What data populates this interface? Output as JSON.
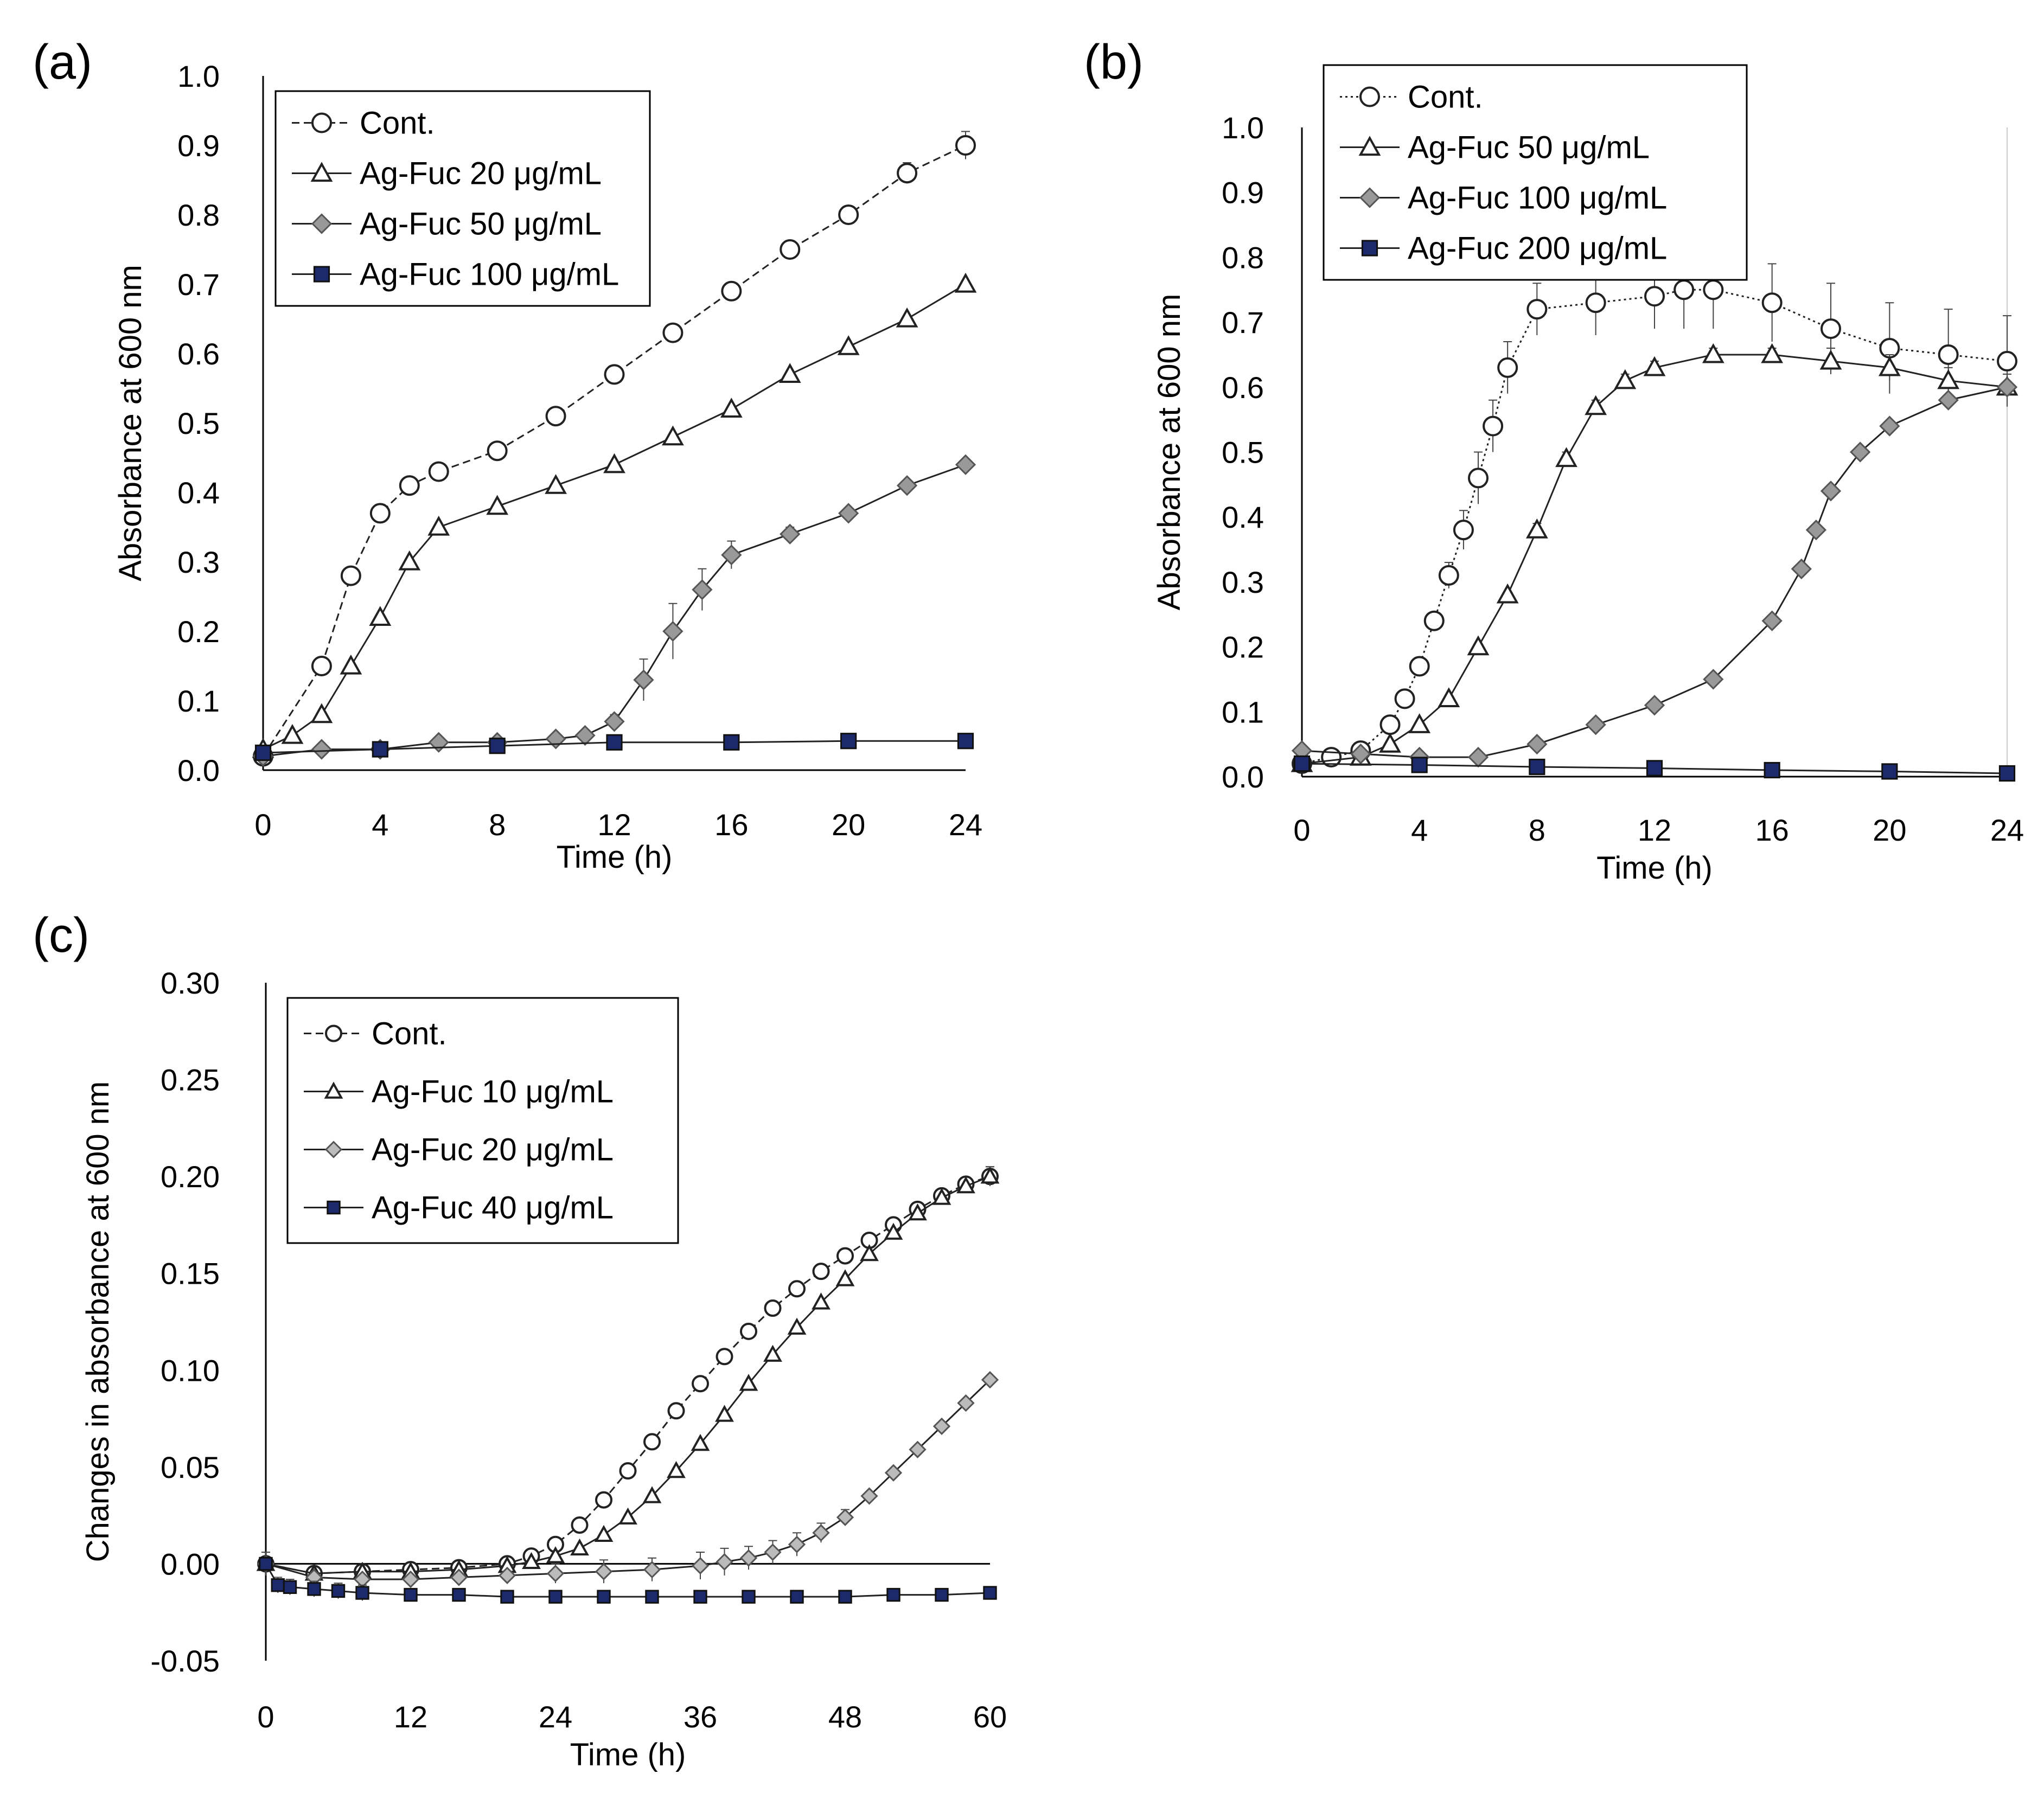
{
  "chart_data": [
    {
      "panel_label": "(a)",
      "type": "line",
      "xlabel": "Time (h)",
      "ylabel": "Absorbance at 600 nm",
      "xlim": [
        0,
        24
      ],
      "ylim": [
        0,
        1.0
      ],
      "xticks": [
        "0",
        "4",
        "8",
        "12",
        "16",
        "20",
        "24"
      ],
      "yticks": [
        "0.0",
        "0.1",
        "0.2",
        "0.3",
        "0.4",
        "0.5",
        "0.6",
        "0.7",
        "0.8",
        "0.9",
        "1.0"
      ],
      "legend_position": "top-left",
      "series": [
        {
          "name": "Cont.",
          "marker": "circle",
          "line": "dashed",
          "fill": "#ffffff",
          "x": [
            0,
            2,
            3,
            4,
            5,
            6,
            8,
            10,
            12,
            14,
            16,
            18,
            20,
            22,
            24
          ],
          "y": [
            0.02,
            0.15,
            0.28,
            0.37,
            0.41,
            0.43,
            0.46,
            0.51,
            0.57,
            0.63,
            0.69,
            0.75,
            0.8,
            0.86,
            0.9
          ],
          "err": [
            0,
            0,
            0,
            0,
            0,
            0,
            0,
            0,
            0.01,
            0.01,
            0.01,
            0.01,
            0.01,
            0.015,
            0.02
          ]
        },
        {
          "name": "Ag-Fuc 20 μg/mL",
          "marker": "triangle",
          "line": "solid",
          "fill": "#ffffff",
          "x": [
            0,
            1,
            2,
            3,
            4,
            5,
            6,
            8,
            10,
            12,
            14,
            16,
            18,
            20,
            22,
            24
          ],
          "y": [
            0.03,
            0.05,
            0.08,
            0.15,
            0.22,
            0.3,
            0.35,
            0.38,
            0.41,
            0.44,
            0.48,
            0.52,
            0.57,
            0.61,
            0.65,
            0.7
          ],
          "err": [
            0,
            0,
            0,
            0,
            0,
            0,
            0,
            0,
            0,
            0,
            0,
            0,
            0,
            0,
            0,
            0
          ]
        },
        {
          "name": "Ag-Fuc 50 μg/mL",
          "marker": "diamond",
          "line": "solid",
          "fill": "#999999",
          "x": [
            0,
            2,
            4,
            6,
            8,
            10,
            11,
            12,
            13,
            14,
            15,
            16,
            18,
            20,
            22,
            24
          ],
          "y": [
            0.02,
            0.03,
            0.03,
            0.04,
            0.04,
            0.045,
            0.05,
            0.07,
            0.13,
            0.2,
            0.26,
            0.31,
            0.34,
            0.37,
            0.41,
            0.44
          ],
          "err": [
            0,
            0,
            0,
            0,
            0,
            0,
            0.005,
            0.01,
            0.03,
            0.04,
            0.03,
            0.02,
            0.01,
            0,
            0,
            0
          ]
        },
        {
          "name": "Ag-Fuc 100 μg/mL",
          "marker": "square",
          "line": "solid",
          "fill": "#1c2a6b",
          "x": [
            0,
            4,
            8,
            12,
            16,
            20,
            24
          ],
          "y": [
            0.025,
            0.03,
            0.035,
            0.04,
            0.04,
            0.042,
            0.042
          ],
          "err": [
            0,
            0,
            0,
            0,
            0,
            0,
            0
          ]
        }
      ]
    },
    {
      "panel_label": "(b)",
      "type": "line",
      "xlabel": "Time (h)",
      "ylabel": "Absorbance at 600 nm",
      "xlim": [
        0,
        24
      ],
      "ylim": [
        0,
        1.0
      ],
      "xticks": [
        "0",
        "4",
        "8",
        "12",
        "16",
        "20",
        "24"
      ],
      "yticks": [
        "0.0",
        "0.1",
        "0.2",
        "0.3",
        "0.4",
        "0.5",
        "0.6",
        "0.7",
        "0.8",
        "0.9",
        "1.0"
      ],
      "legend_position": "top-left",
      "series": [
        {
          "name": "Cont.",
          "marker": "circle",
          "line": "dotted",
          "fill": "#ffffff",
          "x": [
            0,
            1,
            2,
            3,
            3.5,
            4,
            4.5,
            5,
            5.5,
            6,
            6.5,
            7,
            8,
            10,
            12,
            13,
            14,
            16,
            18,
            20,
            22,
            24
          ],
          "y": [
            0.02,
            0.03,
            0.04,
            0.08,
            0.12,
            0.17,
            0.24,
            0.31,
            0.38,
            0.46,
            0.54,
            0.63,
            0.72,
            0.73,
            0.74,
            0.75,
            0.75,
            0.73,
            0.69,
            0.66,
            0.65,
            0.64
          ],
          "err": [
            0,
            0,
            0,
            0,
            0,
            0,
            0,
            0.02,
            0.03,
            0.04,
            0.04,
            0.04,
            0.04,
            0.05,
            0.05,
            0.06,
            0.06,
            0.06,
            0.07,
            0.07,
            0.07,
            0.07
          ]
        },
        {
          "name": "Ag-Fuc 50 μg/mL",
          "marker": "triangle",
          "line": "solid",
          "fill": "#ffffff",
          "x": [
            0,
            2,
            3,
            4,
            5,
            6,
            7,
            8,
            9,
            10,
            11,
            12,
            14,
            16,
            18,
            20,
            22,
            24
          ],
          "y": [
            0.02,
            0.03,
            0.05,
            0.08,
            0.12,
            0.2,
            0.28,
            0.38,
            0.49,
            0.57,
            0.61,
            0.63,
            0.65,
            0.65,
            0.64,
            0.63,
            0.61,
            0.6
          ],
          "err": [
            0,
            0,
            0,
            0,
            0,
            0,
            0,
            0.01,
            0.01,
            0.01,
            0.01,
            0.01,
            0.01,
            0.01,
            0.02,
            0.02,
            0.02,
            0.02
          ]
        },
        {
          "name": "Ag-Fuc 100 μg/mL",
          "marker": "diamond",
          "line": "solid",
          "fill": "#999999",
          "x": [
            0,
            2,
            4,
            6,
            8,
            10,
            12,
            14,
            16,
            17,
            17.5,
            18,
            19,
            20,
            22,
            24
          ],
          "y": [
            0.04,
            0.035,
            0.03,
            0.03,
            0.05,
            0.08,
            0.11,
            0.15,
            0.24,
            0.32,
            0.38,
            0.44,
            0.5,
            0.54,
            0.58,
            0.6
          ],
          "err": [
            0,
            0,
            0,
            0,
            0,
            0,
            0,
            0,
            0,
            0,
            0,
            0,
            0,
            0,
            0,
            0
          ]
        },
        {
          "name": "Ag-Fuc 200 μg/mL",
          "marker": "square",
          "line": "solid",
          "fill": "#1c2a6b",
          "x": [
            0,
            4,
            8,
            12,
            16,
            20,
            24
          ],
          "y": [
            0.02,
            0.018,
            0.015,
            0.013,
            0.01,
            0.008,
            0.005
          ],
          "err": [
            0,
            0,
            0,
            0,
            0,
            0,
            0
          ]
        }
      ]
    },
    {
      "panel_label": "(c)",
      "type": "line",
      "xlabel": "Time (h)",
      "ylabel": "Changes in absorbance at 600 nm",
      "xlim": [
        0,
        60
      ],
      "ylim": [
        -0.05,
        0.3
      ],
      "xticks": [
        "0",
        "12",
        "24",
        "36",
        "48",
        "60"
      ],
      "yticks": [
        "-0.05",
        "0.00",
        "0.05",
        "0.10",
        "0.15",
        "0.20",
        "0.25",
        "0.30"
      ],
      "legend_position": "top-left",
      "series": [
        {
          "name": "Cont.",
          "marker": "circle",
          "line": "dashed",
          "fill": "#ffffff",
          "x": [
            0,
            4,
            8,
            12,
            16,
            20,
            22,
            24,
            26,
            28,
            30,
            32,
            34,
            36,
            38,
            40,
            42,
            44,
            46,
            48,
            50,
            52,
            54,
            56,
            58,
            60
          ],
          "y": [
            0.0,
            -0.005,
            -0.004,
            -0.003,
            -0.002,
            0.0,
            0.004,
            0.01,
            0.02,
            0.033,
            0.048,
            0.063,
            0.079,
            0.093,
            0.107,
            0.12,
            0.132,
            0.142,
            0.151,
            0.159,
            0.167,
            0.175,
            0.183,
            0.19,
            0.196,
            0.2
          ],
          "err": [
            0,
            0,
            0,
            0,
            0,
            0,
            0,
            0,
            0,
            0,
            0,
            0,
            0,
            0,
            0,
            0,
            0,
            0,
            0,
            0,
            0,
            0,
            0,
            0,
            0,
            0.005
          ]
        },
        {
          "name": "Ag-Fuc 10 μg/mL",
          "marker": "triangle",
          "line": "solid",
          "fill": "#ffffff",
          "x": [
            0,
            4,
            8,
            12,
            16,
            20,
            22,
            24,
            26,
            28,
            30,
            32,
            34,
            36,
            38,
            40,
            42,
            44,
            46,
            48,
            50,
            52,
            54,
            56,
            58,
            60
          ],
          "y": [
            0.0,
            -0.005,
            -0.004,
            -0.004,
            -0.003,
            -0.001,
            0.001,
            0.004,
            0.008,
            0.015,
            0.024,
            0.035,
            0.048,
            0.062,
            0.077,
            0.093,
            0.108,
            0.122,
            0.135,
            0.147,
            0.16,
            0.171,
            0.181,
            0.189,
            0.195,
            0.2
          ],
          "err": [
            0,
            0,
            0,
            0,
            0,
            0,
            0,
            0,
            0,
            0,
            0,
            0,
            0,
            0,
            0,
            0,
            0,
            0,
            0,
            0,
            0,
            0,
            0,
            0,
            0,
            0.005
          ]
        },
        {
          "name": "Ag-Fuc 20 μg/mL",
          "marker": "diamond",
          "line": "solid",
          "fill": "#bbbbbb",
          "x": [
            0,
            4,
            8,
            12,
            16,
            20,
            24,
            28,
            32,
            36,
            38,
            40,
            42,
            44,
            46,
            48,
            50,
            52,
            54,
            56,
            58,
            60
          ],
          "y": [
            0.0,
            -0.007,
            -0.008,
            -0.008,
            -0.007,
            -0.006,
            -0.005,
            -0.004,
            -0.003,
            -0.001,
            0.001,
            0.003,
            0.006,
            0.01,
            0.016,
            0.024,
            0.035,
            0.047,
            0.059,
            0.071,
            0.083,
            0.095
          ],
          "err": [
            0,
            0,
            0,
            0,
            0,
            0,
            0.005,
            0.006,
            0.006,
            0.007,
            0.007,
            0.006,
            0.006,
            0.006,
            0.005,
            0.004,
            0,
            0,
            0,
            0,
            0,
            0
          ]
        },
        {
          "name": "Ag-Fuc 40 μg/mL",
          "marker": "square",
          "line": "solid",
          "fill": "#1c2a6b",
          "x": [
            0,
            1,
            2,
            4,
            6,
            8,
            12,
            16,
            20,
            24,
            28,
            32,
            36,
            40,
            44,
            48,
            52,
            56,
            60
          ],
          "y": [
            0.0,
            -0.011,
            -0.012,
            -0.013,
            -0.014,
            -0.015,
            -0.016,
            -0.016,
            -0.017,
            -0.017,
            -0.017,
            -0.017,
            -0.017,
            -0.017,
            -0.017,
            -0.017,
            -0.016,
            -0.016,
            -0.015
          ],
          "err": [
            0.006,
            0.004,
            0.004,
            0.004,
            0.004,
            0.004,
            0.003,
            0.003,
            0.003,
            0.003,
            0.003,
            0.003,
            0.003,
            0.003,
            0.003,
            0.003,
            0.003,
            0.003,
            0.003
          ]
        }
      ]
    }
  ]
}
